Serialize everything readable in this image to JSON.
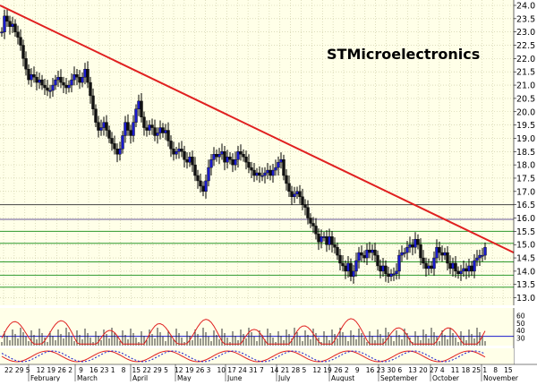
{
  "chart_data": {
    "type": "candlestick",
    "title": "STMicroelectronics",
    "y_axis": {
      "range": [
        12.75,
        24.0
      ],
      "ticks": [
        "24.0",
        "23.5",
        "23.0",
        "22.5",
        "22.0",
        "21.5",
        "21.0",
        "20.5",
        "20.0",
        "19.5",
        "19.0",
        "18.5",
        "18.0",
        "17.5",
        "17.0",
        "16.5",
        "16.0",
        "15.5",
        "15.0",
        "14.5",
        "14.0",
        "13.5",
        "13.0"
      ],
      "tick_values": [
        24.0,
        23.5,
        23.0,
        22.5,
        22.0,
        21.5,
        21.0,
        20.5,
        20.0,
        19.5,
        19.0,
        18.5,
        18.0,
        17.5,
        17.0,
        16.5,
        16.0,
        15.5,
        15.0,
        14.5,
        14.0,
        13.5,
        13.0
      ]
    },
    "x_axis": {
      "day_ticks": [
        "22",
        "29",
        "5",
        "12",
        "19",
        "26",
        "2",
        "9",
        "16",
        "23",
        "1",
        "8",
        "15",
        "22",
        "29",
        "5",
        "12",
        "19",
        "26",
        "3",
        "10",
        "17",
        "24",
        "31",
        "7",
        "14",
        "21",
        "28",
        "5",
        "12",
        "19",
        "26",
        "2",
        "9",
        "16",
        "23",
        "30",
        "6",
        "13",
        "20",
        "27",
        "4",
        "11",
        "18",
        "25",
        "1",
        "8",
        "15"
      ],
      "months": [
        "February",
        "March",
        "April",
        "May",
        "June",
        "July",
        "August",
        "September",
        "October",
        "November"
      ]
    },
    "price": {
      "description_points": [
        [
          0,
          23.0
        ],
        [
          3,
          23.6
        ],
        [
          6,
          23.4
        ],
        [
          9,
          23.2
        ],
        [
          12,
          23.3
        ],
        [
          15,
          23.0
        ],
        [
          18,
          22.8
        ],
        [
          21,
          22.5
        ],
        [
          24,
          22.0
        ],
        [
          27,
          21.6
        ],
        [
          30,
          21.2
        ],
        [
          33,
          21.4
        ],
        [
          36,
          21.3
        ],
        [
          39,
          21.1
        ],
        [
          42,
          21.2
        ],
        [
          45,
          21.0
        ],
        [
          48,
          20.9
        ],
        [
          51,
          20.8
        ],
        [
          54,
          20.8
        ],
        [
          57,
          21.0
        ],
        [
          60,
          21.2
        ],
        [
          63,
          21.3
        ],
        [
          66,
          21.1
        ],
        [
          69,
          21.0
        ],
        [
          72,
          20.9
        ],
        [
          75,
          21.0
        ],
        [
          78,
          21.2
        ],
        [
          81,
          21.4
        ],
        [
          84,
          21.3
        ],
        [
          87,
          21.1
        ],
        [
          90,
          21.3
        ],
        [
          93,
          21.6
        ],
        [
          96,
          21.1
        ],
        [
          99,
          20.6
        ],
        [
          102,
          20.1
        ],
        [
          105,
          19.6
        ],
        [
          108,
          19.3
        ],
        [
          111,
          19.4
        ],
        [
          114,
          19.6
        ],
        [
          117,
          19.3
        ],
        [
          120,
          19.0
        ],
        [
          123,
          18.8
        ],
        [
          126,
          18.6
        ],
        [
          129,
          18.4
        ],
        [
          132,
          18.6
        ],
        [
          135,
          19.1
        ],
        [
          138,
          19.6
        ],
        [
          141,
          19.3
        ],
        [
          144,
          19.1
        ],
        [
          147,
          19.6
        ],
        [
          150,
          20.1
        ],
        [
          153,
          20.4
        ],
        [
          156,
          19.8
        ],
        [
          159,
          19.4
        ],
        [
          162,
          19.3
        ],
        [
          165,
          19.5
        ],
        [
          168,
          19.4
        ],
        [
          171,
          19.1
        ],
        [
          174,
          19.2
        ],
        [
          177,
          19.4
        ],
        [
          180,
          19.2
        ],
        [
          183,
          19.3
        ],
        [
          186,
          18.9
        ],
        [
          189,
          18.6
        ],
        [
          192,
          18.4
        ],
        [
          195,
          18.5
        ],
        [
          198,
          18.6
        ],
        [
          201,
          18.5
        ],
        [
          204,
          18.2
        ],
        [
          207,
          18.1
        ],
        [
          210,
          18.3
        ],
        [
          213,
          18.0
        ],
        [
          216,
          17.6
        ],
        [
          219,
          17.4
        ],
        [
          222,
          17.2
        ],
        [
          225,
          17.0
        ],
        [
          228,
          17.4
        ],
        [
          231,
          17.9
        ],
        [
          234,
          18.2
        ],
        [
          237,
          18.4
        ],
        [
          240,
          18.3
        ],
        [
          243,
          18.4
        ],
        [
          246,
          18.5
        ],
        [
          249,
          18.1
        ],
        [
          252,
          18.3
        ],
        [
          255,
          18.2
        ],
        [
          258,
          18.0
        ],
        [
          261,
          18.2
        ],
        [
          264,
          18.5
        ],
        [
          267,
          18.4
        ],
        [
          270,
          18.3
        ],
        [
          273,
          18.1
        ],
        [
          276,
          17.9
        ],
        [
          279,
          17.8
        ],
        [
          282,
          17.6
        ],
        [
          285,
          17.7
        ],
        [
          288,
          17.6
        ],
        [
          291,
          17.6
        ],
        [
          294,
          17.7
        ],
        [
          297,
          17.8
        ],
        [
          300,
          17.6
        ],
        [
          303,
          17.8
        ],
        [
          306,
          17.9
        ],
        [
          309,
          18.1
        ],
        [
          312,
          18.2
        ],
        [
          315,
          17.6
        ],
        [
          318,
          17.3
        ],
        [
          321,
          17.0
        ],
        [
          324,
          16.8
        ],
        [
          327,
          16.9
        ],
        [
          330,
          17.0
        ],
        [
          333,
          16.8
        ],
        [
          336,
          16.5
        ],
        [
          339,
          16.4
        ],
        [
          342,
          16.0
        ],
        [
          345,
          15.8
        ],
        [
          348,
          15.7
        ],
        [
          351,
          15.4
        ],
        [
          354,
          15.1
        ],
        [
          357,
          15.3
        ],
        [
          360,
          15.3
        ],
        [
          363,
          15.0
        ],
        [
          366,
          15.3
        ],
        [
          369,
          15.0
        ],
        [
          372,
          14.9
        ],
        [
          375,
          14.6
        ],
        [
          378,
          14.3
        ],
        [
          381,
          14.2
        ],
        [
          384,
          14.0
        ],
        [
          387,
          14.3
        ],
        [
          390,
          13.8
        ],
        [
          393,
          14.0
        ],
        [
          396,
          14.4
        ],
        [
          399,
          14.7
        ],
        [
          402,
          14.6
        ],
        [
          405,
          14.5
        ],
        [
          408,
          14.8
        ],
        [
          411,
          14.7
        ],
        [
          414,
          14.8
        ],
        [
          417,
          14.6
        ],
        [
          420,
          14.2
        ],
        [
          423,
          14.0
        ],
        [
          426,
          14.2
        ],
        [
          429,
          13.9
        ],
        [
          432,
          13.8
        ],
        [
          435,
          13.9
        ],
        [
          438,
          13.9
        ],
        [
          441,
          14.0
        ],
        [
          444,
          14.6
        ],
        [
          447,
          14.7
        ],
        [
          450,
          14.7
        ],
        [
          453,
          14.9
        ],
        [
          456,
          15.0
        ],
        [
          459,
          14.9
        ],
        [
          462,
          15.2
        ],
        [
          465,
          15.0
        ],
        [
          468,
          14.5
        ],
        [
          471,
          14.3
        ],
        [
          474,
          14.1
        ],
        [
          477,
          14.2
        ],
        [
          480,
          14.1
        ],
        [
          483,
          14.5
        ],
        [
          486,
          14.9
        ],
        [
          489,
          14.7
        ],
        [
          492,
          14.6
        ],
        [
          495,
          14.7
        ],
        [
          498,
          14.3
        ],
        [
          501,
          14.1
        ],
        [
          504,
          14.3
        ],
        [
          507,
          14.0
        ],
        [
          510,
          13.9
        ],
        [
          513,
          14.0
        ],
        [
          516,
          14.1
        ],
        [
          519,
          14.0
        ],
        [
          522,
          14.2
        ],
        [
          525,
          14.0
        ],
        [
          528,
          14.4
        ],
        [
          531,
          14.5
        ],
        [
          534,
          14.6
        ],
        [
          537,
          14.6
        ],
        [
          540,
          14.9
        ]
      ]
    },
    "trendline": {
      "from": [
        0,
        24.0
      ],
      "to": [
        574,
        14.7
      ],
      "color": "#e02020"
    },
    "horizontal_lines": [
      {
        "value": 16.5,
        "color": "#444444"
      },
      {
        "value": 15.95,
        "color": "#6a5a9a"
      },
      {
        "value": 15.5,
        "color": "#2f9a2f"
      },
      {
        "value": 15.05,
        "color": "#2f9a2f"
      },
      {
        "value": 14.35,
        "color": "#2f9a2f"
      },
      {
        "value": 13.85,
        "color": "#2f9a2f"
      },
      {
        "value": 13.4,
        "color": "#2f9a2f"
      }
    ],
    "rsi": {
      "ticks": [
        "60",
        "50",
        "40",
        "30"
      ],
      "tick_values": [
        60,
        50,
        40,
        30
      ],
      "range": [
        20,
        70
      ]
    },
    "colors": {
      "background": "#ffffe8",
      "grid": "#c8c8a0",
      "up": "#1a1acc",
      "down": "#111111",
      "trend": "#e02020",
      "rsi": "#e02020",
      "rsi_base": "#1a1acc"
    }
  }
}
